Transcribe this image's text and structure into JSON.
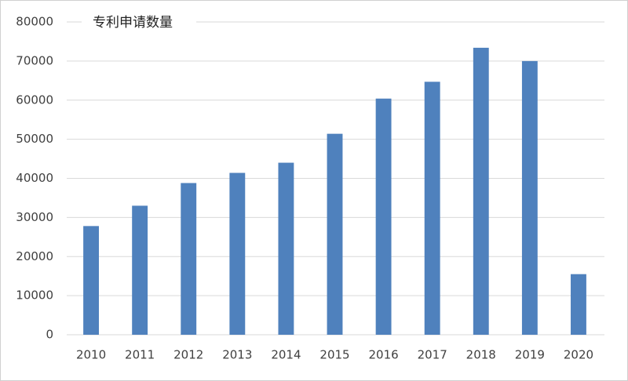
{
  "chart_data": {
    "type": "bar",
    "title": "专利申请数量",
    "categories": [
      "2010",
      "2011",
      "2012",
      "2013",
      "2014",
      "2015",
      "2016",
      "2017",
      "2018",
      "2019",
      "2020"
    ],
    "values": [
      27800,
      33000,
      38800,
      41400,
      44000,
      51400,
      60400,
      64700,
      73400,
      70000,
      15500
    ],
    "color": "#4f81bd",
    "ylim": [
      0,
      80000
    ],
    "yticks": [
      0,
      10000,
      20000,
      30000,
      40000,
      50000,
      60000,
      70000,
      80000
    ],
    "grid": true
  }
}
